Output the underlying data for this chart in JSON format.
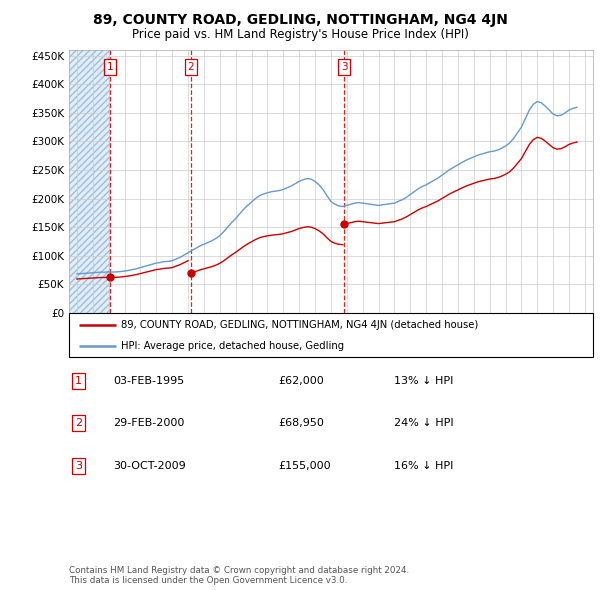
{
  "title": "89, COUNTY ROAD, GEDLING, NOTTINGHAM, NG4 4JN",
  "subtitle": "Price paid vs. HM Land Registry's House Price Index (HPI)",
  "xlim": [
    1992.5,
    2025.5
  ],
  "ylim": [
    0,
    460000
  ],
  "yticks": [
    0,
    50000,
    100000,
    150000,
    200000,
    250000,
    300000,
    350000,
    400000,
    450000
  ],
  "ytick_labels": [
    "£0",
    "£50K",
    "£100K",
    "£150K",
    "£200K",
    "£250K",
    "£300K",
    "£350K",
    "£400K",
    "£450K"
  ],
  "xticks": [
    1993,
    1994,
    1995,
    1996,
    1997,
    1998,
    1999,
    2000,
    2001,
    2002,
    2003,
    2004,
    2005,
    2006,
    2007,
    2008,
    2009,
    2010,
    2011,
    2012,
    2013,
    2014,
    2015,
    2016,
    2017,
    2018,
    2019,
    2020,
    2021,
    2022,
    2023,
    2024,
    2025
  ],
  "sale_dates": [
    1995.085,
    2000.163,
    2009.831
  ],
  "sale_prices": [
    62000,
    68950,
    155000
  ],
  "sale_labels": [
    "1",
    "2",
    "3"
  ],
  "legend_red": "89, COUNTY ROAD, GEDLING, NOTTINGHAM, NG4 4JN (detached house)",
  "legend_blue": "HPI: Average price, detached house, Gedling",
  "table_rows": [
    {
      "num": "1",
      "date": "03-FEB-1995",
      "price": "£62,000",
      "pct": "13% ↓ HPI"
    },
    {
      "num": "2",
      "date": "29-FEB-2000",
      "price": "£68,950",
      "pct": "24% ↓ HPI"
    },
    {
      "num": "3",
      "date": "30-OCT-2009",
      "price": "£155,000",
      "pct": "16% ↓ HPI"
    }
  ],
  "footer": "Contains HM Land Registry data © Crown copyright and database right 2024.\nThis data is licensed under the Open Government Licence v3.0.",
  "hpi_color": "#6699cc",
  "sale_color": "#cc0000",
  "grid_color": "#cccccc",
  "hpi_data": {
    "years": [
      1993.0,
      1993.25,
      1993.5,
      1993.75,
      1994.0,
      1994.25,
      1994.5,
      1994.75,
      1995.0,
      1995.25,
      1995.5,
      1995.75,
      1996.0,
      1996.25,
      1996.5,
      1996.75,
      1997.0,
      1997.25,
      1997.5,
      1997.75,
      1998.0,
      1998.25,
      1998.5,
      1998.75,
      1999.0,
      1999.25,
      1999.5,
      1999.75,
      2000.0,
      2000.25,
      2000.5,
      2000.75,
      2001.0,
      2001.25,
      2001.5,
      2001.75,
      2002.0,
      2002.25,
      2002.5,
      2002.75,
      2003.0,
      2003.25,
      2003.5,
      2003.75,
      2004.0,
      2004.25,
      2004.5,
      2004.75,
      2005.0,
      2005.25,
      2005.5,
      2005.75,
      2006.0,
      2006.25,
      2006.5,
      2006.75,
      2007.0,
      2007.25,
      2007.5,
      2007.75,
      2008.0,
      2008.25,
      2008.5,
      2008.75,
      2009.0,
      2009.25,
      2009.5,
      2009.75,
      2010.0,
      2010.25,
      2010.5,
      2010.75,
      2011.0,
      2011.25,
      2011.5,
      2011.75,
      2012.0,
      2012.25,
      2012.5,
      2012.75,
      2013.0,
      2013.25,
      2013.5,
      2013.75,
      2014.0,
      2014.25,
      2014.5,
      2014.75,
      2015.0,
      2015.25,
      2015.5,
      2015.75,
      2016.0,
      2016.25,
      2016.5,
      2016.75,
      2017.0,
      2017.25,
      2017.5,
      2017.75,
      2018.0,
      2018.25,
      2018.5,
      2018.75,
      2019.0,
      2019.25,
      2019.5,
      2019.75,
      2020.0,
      2020.25,
      2020.5,
      2020.75,
      2021.0,
      2021.25,
      2021.5,
      2021.75,
      2022.0,
      2022.25,
      2022.5,
      2022.75,
      2023.0,
      2023.25,
      2023.5,
      2023.75,
      2024.0,
      2024.25,
      2024.5
    ],
    "values": [
      68000,
      68500,
      69000,
      69500,
      70000,
      70500,
      71000,
      71000,
      71500,
      71200,
      71500,
      72000,
      73000,
      74000,
      75500,
      77000,
      79000,
      81000,
      83000,
      85000,
      87000,
      88000,
      89500,
      90000,
      91000,
      94000,
      97000,
      101000,
      105000,
      109000,
      113000,
      117000,
      120000,
      123000,
      126000,
      130000,
      135000,
      142000,
      150000,
      158000,
      165000,
      173000,
      181000,
      188000,
      194000,
      200000,
      205000,
      208000,
      210000,
      212000,
      213000,
      214000,
      216000,
      219000,
      222000,
      226000,
      230000,
      233000,
      235000,
      234000,
      230000,
      224000,
      216000,
      205000,
      195000,
      190000,
      187000,
      186000,
      188000,
      190000,
      192000,
      193000,
      192000,
      191000,
      190000,
      189000,
      188000,
      189000,
      190000,
      191000,
      192000,
      195000,
      198000,
      202000,
      207000,
      212000,
      217000,
      221000,
      224000,
      228000,
      232000,
      236000,
      241000,
      246000,
      251000,
      255000,
      259000,
      263000,
      267000,
      270000,
      273000,
      276000,
      278000,
      280000,
      282000,
      283000,
      285000,
      288000,
      292000,
      297000,
      305000,
      315000,
      325000,
      340000,
      355000,
      365000,
      370000,
      368000,
      362000,
      355000,
      348000,
      345000,
      346000,
      350000,
      355000,
      358000,
      360000
    ]
  }
}
